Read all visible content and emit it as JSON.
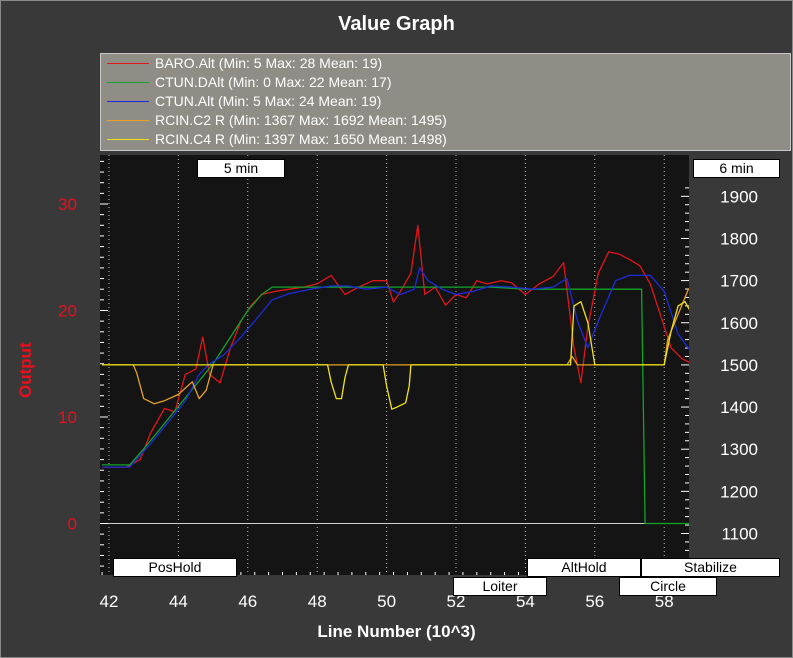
{
  "window": {
    "title": "Value Graph"
  },
  "legend": {
    "items": [
      {
        "label": "BARO.Alt (Min: 5 Max: 28 Mean: 19)",
        "color": "#e0161b"
      },
      {
        "label": "CTUN.DAlt (Min: 0 Max: 22 Mean: 17)",
        "color": "#12a32a"
      },
      {
        "label": "CTUN.Alt (Min: 5 Max: 24 Mean: 19)",
        "color": "#1c2cd9"
      },
      {
        "label": "RCIN.C2 R (Min: 1367 Max: 1692 Mean: 1495)",
        "color": "#e8a020"
      },
      {
        "label": "RCIN.C4 R (Min: 1397 Max: 1650 Mean: 1498)",
        "color": "#f2e21a"
      }
    ]
  },
  "time_labels": {
    "left": "5 min",
    "right": "6 min"
  },
  "mode_labels": [
    {
      "label": "PosHold",
      "x": 42.2
    },
    {
      "label": "Loiter",
      "x": 52.1
    },
    {
      "label": "AltHold",
      "x": 54.4
    },
    {
      "label": "Circle",
      "x": 57.1
    },
    {
      "label": "Stabilize",
      "x": 57.6
    }
  ],
  "chart_data": {
    "type": "line",
    "title": "Value Graph",
    "xlabel": "Line Number (10^3)",
    "ylabel": "Output",
    "xlim": [
      41.8,
      59.0
    ],
    "ylim_left": [
      -5,
      34
    ],
    "ylim_right": [
      1000,
      1930
    ],
    "x_ticks": [
      "42",
      "44",
      "46",
      "48",
      "50",
      "52",
      "54",
      "56",
      "58"
    ],
    "y_ticks_left": [
      "0",
      "10",
      "20",
      "30"
    ],
    "y_ticks_right": [
      "1100",
      "1200",
      "1300",
      "1400",
      "1500",
      "1600",
      "1700",
      "1800",
      "1900"
    ],
    "grid": true,
    "series": [
      {
        "name": "BARO.Alt",
        "axis": "left",
        "color": "#e0161b",
        "x": [
          41.8,
          42.5,
          42.9,
          43.2,
          43.6,
          43.9,
          44.2,
          44.5,
          44.7,
          44.9,
          45.2,
          45.5,
          45.8,
          46.1,
          46.4,
          46.8,
          47.2,
          47.6,
          48.0,
          48.4,
          48.8,
          49.2,
          49.6,
          50.0,
          50.2,
          50.4,
          50.7,
          50.9,
          51.1,
          51.4,
          51.7,
          52.0,
          52.3,
          52.6,
          52.9,
          53.3,
          53.6,
          54.0,
          54.4,
          54.8,
          55.1,
          55.4,
          55.6,
          55.8,
          56.1,
          56.4,
          56.7,
          57.0,
          57.3,
          57.6,
          57.9,
          58.2,
          58.5,
          58.8
        ],
        "y": [
          5.3,
          5.3,
          6.0,
          8.5,
          10.8,
          10.5,
          14.0,
          14.5,
          17.5,
          14.0,
          13.2,
          16.5,
          19.0,
          20.5,
          21.5,
          21.8,
          22.0,
          22.2,
          22.5,
          23.3,
          21.5,
          22.2,
          22.8,
          22.8,
          20.8,
          21.8,
          23.5,
          28.0,
          21.5,
          22.2,
          20.5,
          21.5,
          21.2,
          22.8,
          22.5,
          22.8,
          22.6,
          21.5,
          22.5,
          23.2,
          24.5,
          16.5,
          13.2,
          18.5,
          23.5,
          25.5,
          25.3,
          24.8,
          24.2,
          22.5,
          19.5,
          16.5,
          15.5,
          15.0
        ]
      },
      {
        "name": "CTUN.DAlt",
        "axis": "left",
        "color": "#12a32a",
        "x": [
          41.8,
          42.6,
          43.0,
          43.5,
          44.0,
          44.5,
          45.0,
          45.5,
          46.0,
          46.4,
          46.7,
          47.0,
          48.0,
          49.0,
          50.0,
          51.0,
          52.0,
          53.0,
          54.0,
          54.5,
          55.0,
          56.0,
          57.0,
          57.35,
          57.45,
          57.8,
          58.2,
          59.0
        ],
        "y": [
          5.5,
          5.5,
          7.0,
          9.0,
          11.0,
          13.0,
          15.0,
          17.5,
          20.0,
          21.5,
          22.2,
          22.2,
          22.2,
          22.2,
          22.2,
          22.2,
          22.2,
          22.2,
          22.0,
          22.0,
          22.0,
          22.0,
          22.0,
          22.0,
          0.0,
          0.0,
          0.0,
          0.0
        ]
      },
      {
        "name": "CTUN.Alt",
        "axis": "left",
        "color": "#1c2cd9",
        "x": [
          41.8,
          42.6,
          43.2,
          43.7,
          44.2,
          44.6,
          44.9,
          45.3,
          45.8,
          46.2,
          46.7,
          47.2,
          47.8,
          48.4,
          48.9,
          49.4,
          50.0,
          50.4,
          50.8,
          50.95,
          51.2,
          51.6,
          52.0,
          52.5,
          53.0,
          53.6,
          54.2,
          54.8,
          55.2,
          55.5,
          55.8,
          56.1,
          56.6,
          57.0,
          57.6,
          58.0,
          58.4,
          58.8
        ],
        "y": [
          5.3,
          5.3,
          7.5,
          9.5,
          11.5,
          14.0,
          15.0,
          15.8,
          17.5,
          19.0,
          21.0,
          21.6,
          22.0,
          22.3,
          22.3,
          22.0,
          22.2,
          21.5,
          22.0,
          24.0,
          22.8,
          22.0,
          21.5,
          21.8,
          22.3,
          22.2,
          22.0,
          22.2,
          23.0,
          19.0,
          16.5,
          19.0,
          22.8,
          23.3,
          23.3,
          21.8,
          17.8,
          16.0
        ]
      },
      {
        "name": "RCIN.C2 R",
        "axis": "right",
        "color": "#e8a020",
        "x": [
          41.8,
          42.7,
          42.8,
          43.0,
          43.3,
          43.6,
          44.0,
          44.4,
          44.6,
          44.8,
          45.0,
          46.0,
          48.0,
          50.0,
          52.0,
          53.0,
          54.0,
          55.0,
          55.2,
          55.35,
          55.5,
          55.7,
          56.0,
          57.0,
          58.0,
          58.1,
          58.3,
          58.5,
          58.7,
          58.85,
          58.95
        ],
        "y": [
          1500,
          1500,
          1480,
          1420,
          1408,
          1415,
          1430,
          1460,
          1420,
          1440,
          1500,
          1500,
          1500,
          1500,
          1500,
          1500,
          1500,
          1500,
          1500,
          1520,
          1500,
          1500,
          1500,
          1500,
          1500,
          1560,
          1600,
          1640,
          1680,
          1690,
          1600
        ]
      },
      {
        "name": "RCIN.C4 R",
        "axis": "right",
        "color": "#f2e21a",
        "x": [
          41.8,
          45.0,
          46.0,
          47.0,
          47.3,
          47.5,
          47.7,
          47.9,
          48.3,
          48.4,
          48.55,
          48.7,
          48.8,
          48.9,
          49.5,
          49.9,
          50.0,
          50.15,
          50.3,
          50.55,
          50.65,
          50.7,
          52.0,
          54.0,
          55.0,
          55.3,
          55.4,
          55.6,
          55.8,
          56.0,
          57.0,
          58.0,
          58.2,
          58.4,
          58.6,
          58.8,
          58.95
        ],
        "y": [
          1500,
          1500,
          1500,
          1500,
          1500,
          1500,
          1500,
          1500,
          1500,
          1460,
          1420,
          1420,
          1470,
          1500,
          1500,
          1500,
          1450,
          1395,
          1400,
          1410,
          1450,
          1500,
          1500,
          1500,
          1500,
          1500,
          1640,
          1650,
          1600,
          1500,
          1500,
          1500,
          1580,
          1640,
          1650,
          1620,
          1500
        ]
      }
    ]
  }
}
